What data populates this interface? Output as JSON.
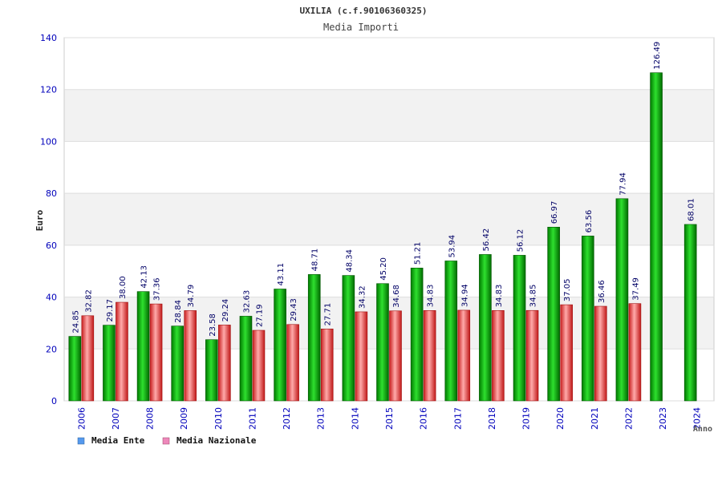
{
  "chart_data": {
    "type": "bar",
    "title": "UXILIA (c.f.90106360325)",
    "subtitle": "Media Importi",
    "xlabel": "Anno",
    "ylabel": "Euro",
    "ylim": [
      0,
      140
    ],
    "yticks": [
      "0",
      "20",
      "40",
      "60",
      "80",
      "100",
      "120",
      "140"
    ],
    "grid": true,
    "legend_position": "bottom-left",
    "categories": [
      "2006",
      "2007",
      "2008",
      "2009",
      "2010",
      "2011",
      "2012",
      "2013",
      "2014",
      "2015",
      "2016",
      "2017",
      "2018",
      "2019",
      "2020",
      "2021",
      "2022",
      "2023",
      "2024"
    ],
    "series": [
      {
        "name": "Media Ente",
        "color": "#00c000",
        "values": [
          24.85,
          29.17,
          42.13,
          28.84,
          23.58,
          32.63,
          43.11,
          48.71,
          48.34,
          45.2,
          51.21,
          53.94,
          56.42,
          56.12,
          66.97,
          63.56,
          77.94,
          126.49,
          68.01
        ],
        "labels": [
          "24.85",
          "29.17",
          "42.13",
          "28.84",
          "23.58",
          "32.63",
          "43.11",
          "48.71",
          "48.34",
          "45.20",
          "51.21",
          "53.94",
          "56.42",
          "56.12",
          "66.97",
          "63.56",
          "77.94",
          "126.49",
          "68.01"
        ]
      },
      {
        "name": "Media Nazionale",
        "color": "#e03030",
        "values": [
          32.82,
          38.0,
          37.36,
          34.79,
          29.24,
          27.19,
          29.43,
          27.71,
          34.32,
          34.68,
          34.83,
          34.94,
          34.83,
          34.85,
          37.05,
          36.46,
          37.49,
          null,
          null
        ],
        "labels": [
          "32.82",
          "38.00",
          "37.36",
          "34.79",
          "29.24",
          "27.19",
          "29.43",
          "27.71",
          "34.32",
          "34.68",
          "34.83",
          "34.94",
          "34.83",
          "34.85",
          "37.05",
          "36.46",
          "37.49",
          null,
          null
        ]
      }
    ],
    "legend": [
      {
        "name": "Media Ente",
        "swatch": "#5599ee"
      },
      {
        "name": "Media Nazionale",
        "swatch": "#ee88bb"
      }
    ]
  }
}
